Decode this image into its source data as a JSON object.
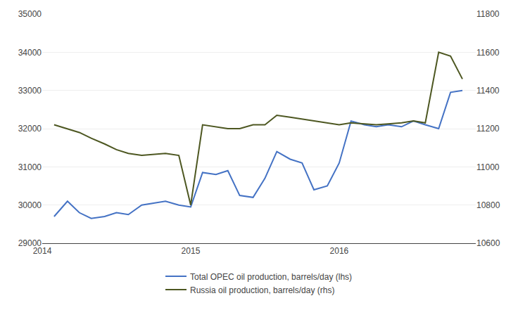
{
  "chart_data": {
    "type": "line",
    "x": [
      2014.08,
      2014.17,
      2014.25,
      2014.33,
      2014.42,
      2014.5,
      2014.58,
      2014.67,
      2014.75,
      2014.83,
      2014.92,
      2015.0,
      2015.08,
      2015.17,
      2015.25,
      2015.33,
      2015.42,
      2015.5,
      2015.58,
      2015.67,
      2015.75,
      2015.83,
      2015.92,
      2016.0,
      2016.08,
      2016.17,
      2016.25,
      2016.33,
      2016.42,
      2016.5,
      2016.58,
      2016.67,
      2016.75,
      2016.83
    ],
    "series": [
      {
        "name": "Total OPEC oil production, barrels/day (lhs)",
        "color": "#4472C4",
        "values": [
          29700,
          30100,
          29800,
          29650,
          29700,
          29800,
          29750,
          30000,
          30050,
          30100,
          30000,
          29950,
          30850,
          30800,
          30900,
          30250,
          30200,
          30700,
          31400,
          31200,
          31100,
          30400,
          30500,
          31100,
          32200,
          32100,
          32050,
          32100,
          32050,
          32200,
          32100,
          32000,
          32950,
          33000
        ]
      },
      {
        "name": "Russia oil production, barrels/day (rhs)",
        "color": "#4D5721",
        "axis": "y2",
        "values": [
          11220,
          11200,
          11180,
          11150,
          11120,
          11090,
          11070,
          11060,
          11065,
          11070,
          11060,
          10800,
          11220,
          11210,
          11200,
          11200,
          11220,
          11220,
          11270,
          11260,
          11250,
          11240,
          11230,
          11220,
          11230,
          11225,
          11220,
          11225,
          11230,
          11240,
          11230,
          11600,
          11580,
          11460
        ]
      }
    ],
    "xlim": [
      2014.0,
      2016.92
    ],
    "xticks": [
      2014,
      2015,
      2016
    ],
    "ylim": [
      29000,
      35000
    ],
    "yticks": [
      29000,
      30000,
      31000,
      32000,
      33000,
      34000,
      35000
    ],
    "y2lim": [
      10600,
      11800
    ],
    "y2ticks": [
      10600,
      10800,
      11000,
      11200,
      11400,
      11600,
      11800
    ],
    "grid": true,
    "legend": "bottom"
  }
}
